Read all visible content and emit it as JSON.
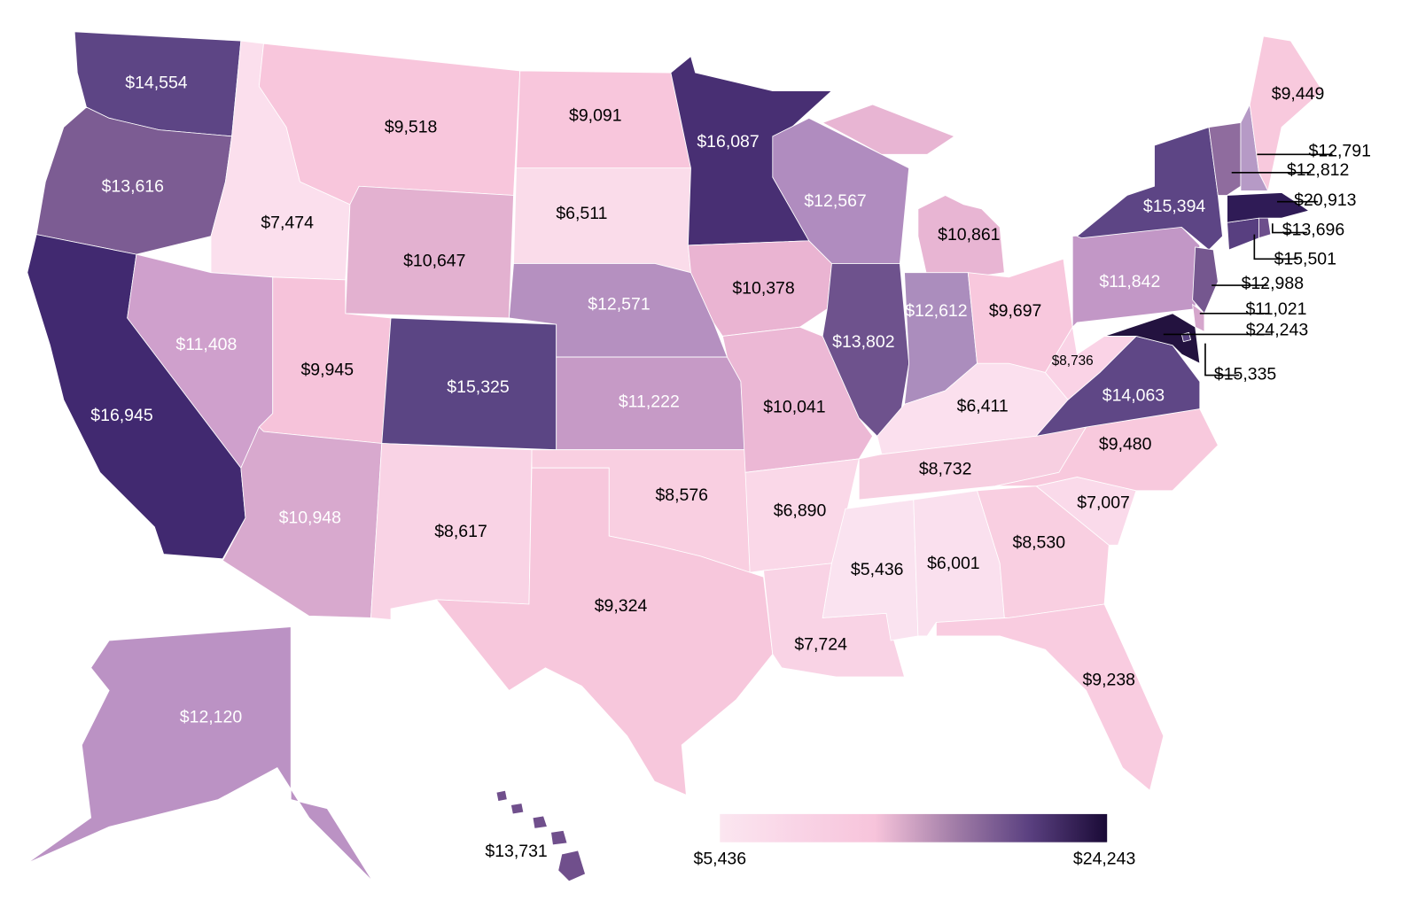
{
  "map": {
    "regions": [
      {
        "value": 14554,
        "label": "$14,554",
        "color": "#5d4585"
      },
      {
        "value": 13616,
        "label": "$13,616",
        "color": "#7c5c93"
      },
      {
        "value": 16945,
        "label": "$16,945",
        "color": "#412970"
      },
      {
        "value": 7474,
        "label": "$7,474",
        "color": "#fbdfed"
      },
      {
        "value": 11408,
        "label": "$11,408",
        "color": "#cfa0cc"
      },
      {
        "value": 9518,
        "label": "$9,518",
        "color": "#f8c6dc"
      },
      {
        "value": 10647,
        "label": "$10,647",
        "color": "#e3b1d0"
      },
      {
        "value": 9945,
        "label": "$9,945",
        "color": "#f6c3da"
      },
      {
        "value": 10948,
        "label": "$10,948",
        "color": "#d8a9ce"
      },
      {
        "value": 15325,
        "label": "$15,325",
        "color": "#5b4584"
      },
      {
        "value": 8617,
        "label": "$8,617",
        "color": "#f9d3e5"
      },
      {
        "value": 9091,
        "label": "$9,091",
        "color": "#f8c6dc"
      },
      {
        "value": 6511,
        "label": "$6,511",
        "color": "#fadcea"
      },
      {
        "value": 12571,
        "label": "$12,571",
        "color": "#b590c0"
      },
      {
        "value": 11222,
        "label": "$11,222",
        "color": "#c69ac6"
      },
      {
        "value": 8576,
        "label": "$8,576",
        "color": "#f9cfe1"
      },
      {
        "value": 9324,
        "label": "$9,324",
        "color": "#f7c7dc"
      },
      {
        "value": 16087,
        "label": "$16,087",
        "color": "#482f73"
      },
      {
        "value": 10378,
        "label": "$10,378",
        "color": "#eab4d2"
      },
      {
        "value": 10041,
        "label": "$10,041",
        "color": "#ecb8d5"
      },
      {
        "value": 6890,
        "label": "$6,890",
        "color": "#fad8e8"
      },
      {
        "value": 7724,
        "label": "$7,724",
        "color": "#f9d3e5"
      },
      {
        "value": 12567,
        "label": "$12,567",
        "color": "#b08cbf"
      },
      {
        "value": 13802,
        "label": "$13,802",
        "color": "#6e528d"
      },
      {
        "value": 10861,
        "label": "$10,861",
        "color": "#e8b5d3"
      },
      {
        "value": 12612,
        "label": "$12,612",
        "color": "#ab8dbd"
      },
      {
        "value": 9697,
        "label": "$9,697",
        "color": "#f8c8dd"
      },
      {
        "value": 6411,
        "label": "$6,411",
        "color": "#fbe0ee"
      },
      {
        "value": 8732,
        "label": "$8,732",
        "color": "#f7cfe1"
      },
      {
        "value": 5436,
        "label": "$5,436",
        "color": "#fae3f0"
      },
      {
        "value": 6001,
        "label": "$6,001",
        "color": "#fae0ee"
      },
      {
        "value": 8530,
        "label": "$8,530",
        "color": "#f9cfe1"
      },
      {
        "value": 9238,
        "label": "$9,238",
        "color": "#f9cce0"
      },
      {
        "value": 7007,
        "label": "$7,007",
        "color": "#fadaea"
      },
      {
        "value": 9480,
        "label": "$9,480",
        "color": "#f8c9dd"
      },
      {
        "value": 14063,
        "label": "$14,063",
        "color": "#5f4786"
      },
      {
        "value": 8736,
        "label": "$8,736",
        "color": "#fad3e6"
      },
      {
        "value": 11842,
        "label": "$11,842",
        "color": "#c297c6"
      },
      {
        "value": 15394,
        "label": "$15,394",
        "color": "#5d4585"
      },
      {
        "value": 12988,
        "label": "$12,988",
        "color": "#75578f"
      },
      {
        "value": 11021,
        "label": "$11,021",
        "color": "#d5a6cc"
      },
      {
        "value": 24243,
        "label": "$24,243",
        "color": "#23123f"
      },
      {
        "value": 15335,
        "label": "$15,335",
        "color": "#5a4383"
      },
      {
        "value": 15501,
        "label": "$15,501",
        "color": "#583f80"
      },
      {
        "value": 13696,
        "label": "$13,696",
        "color": "#6d4f8c"
      },
      {
        "value": 20913,
        "label": "$20,913",
        "color": "#2f1b56"
      },
      {
        "value": 12812,
        "label": "$12,812",
        "color": "#8f6c9e"
      },
      {
        "value": 12791,
        "label": "$12,791",
        "color": "#b69ac6"
      },
      {
        "value": 9449,
        "label": "$9,449",
        "color": "#f8c9dd"
      },
      {
        "value": 12120,
        "label": "$12,120",
        "color": "#bb92c4"
      },
      {
        "value": 13731,
        "label": "$13,731",
        "color": "#704f8c"
      }
    ],
    "legend": {
      "min": {
        "value": 5436,
        "label": "$5,436"
      },
      "max": {
        "value": 24243,
        "label": "$24,243"
      },
      "colors": [
        "#fbe6f0",
        "#f9d4e6",
        "#f7c4db",
        "#a47fa9",
        "#5a4080",
        "#1a0a36"
      ]
    }
  }
}
